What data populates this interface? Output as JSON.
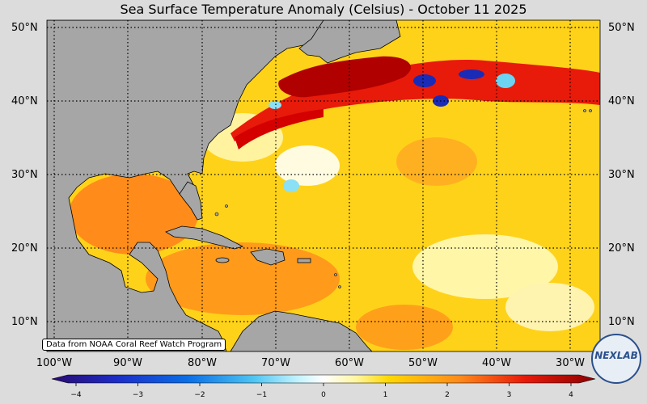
{
  "title": "Sea Surface Temperature Anomaly (Celsius) - October 11 2025",
  "lat_labels": [
    "50°N",
    "40°N",
    "30°N",
    "20°N",
    "10°N"
  ],
  "lat_labels_right": [
    "50°N",
    "40°N",
    "30°N",
    "20°N",
    "10°N"
  ],
  "lon_labels": [
    "100°W",
    "90°W",
    "80°W",
    "70°W",
    "60°W",
    "50°W",
    "40°W",
    "30°W"
  ],
  "credit": "Data from NOAA Coral Reef Watch Program",
  "colorbar": {
    "ticks": [
      "−4",
      "−3",
      "−2",
      "−1",
      "0",
      "1",
      "2",
      "3",
      "4"
    ],
    "min": -4,
    "max": 4
  },
  "logo": {
    "text": "NEXLAB"
  },
  "colors": {
    "land": "#a6a6a6",
    "ocean_base": "#ffd21a",
    "strong_warm": "#d40000",
    "cold": "#1a2bb8",
    "background": "#dcdcdc"
  }
}
